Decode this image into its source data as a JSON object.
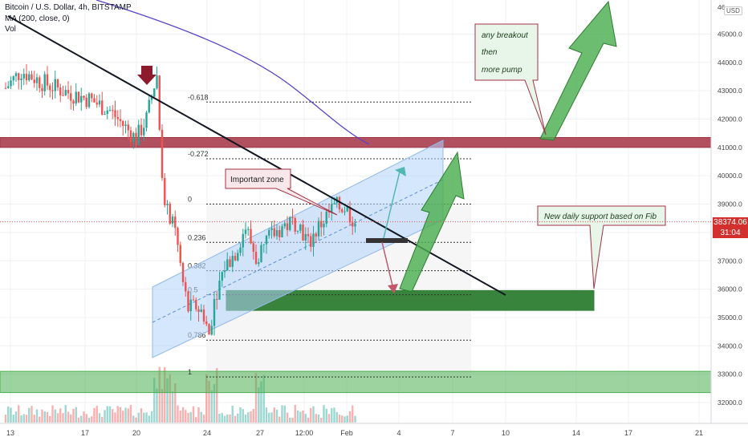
{
  "header": {
    "symbol": "Bitcoin / U.S. Dollar, 4h, BITSTAMP",
    "ma": "MA (200, close, 0)",
    "vol": "Vol"
  },
  "currency_badge": "USD",
  "price_badge": {
    "price": "38374.06",
    "timer": "31:04"
  },
  "annotations": {
    "breakout_line1": "any breakout",
    "breakout_line2": "then",
    "breakout_line3": "more pump",
    "important_zone": "Important zone",
    "daily_support": "New daily support based on Fib"
  },
  "colors": {
    "up": "#26a69a",
    "down": "#ef5350",
    "ma": "#5b43c8",
    "resistance": "#a33244",
    "support": "#2e7d32",
    "channel": "#b3d4fb",
    "arrow": "#4caf50"
  },
  "chart_data": {
    "type": "candlestick",
    "ylim": [
      31600,
      46200
    ],
    "y_ticks": [
      32000,
      33000,
      34000,
      35000,
      36000,
      37000,
      38000,
      39000,
      40000,
      41000,
      42000,
      43000,
      44000,
      45000
    ],
    "x_ticks": [
      "13",
      "17",
      "20",
      "24",
      "27",
      "12:00",
      "Feb",
      "4",
      "7",
      "10",
      "14",
      "17",
      "21"
    ],
    "fib_levels": [
      {
        "label": "-0.618",
        "price": 42600
      },
      {
        "label": "-0.272",
        "price": 40600
      },
      {
        "label": "0",
        "price": 39000
      },
      {
        "label": "0.236",
        "price": 37650
      },
      {
        "label": "0.382",
        "price": 36650
      },
      {
        "label": "0.5",
        "price": 35800
      },
      {
        "label": "0.786",
        "price": 34200
      },
      {
        "label": "1",
        "price": 32900
      }
    ],
    "zones": [
      {
        "name": "resistance",
        "from": 41000,
        "to": 41350
      },
      {
        "name": "fib-support",
        "from": 35250,
        "to": 35950
      },
      {
        "name": "bottom-support",
        "from": 32350,
        "to": 33100
      }
    ],
    "last_price": 38374.06
  }
}
